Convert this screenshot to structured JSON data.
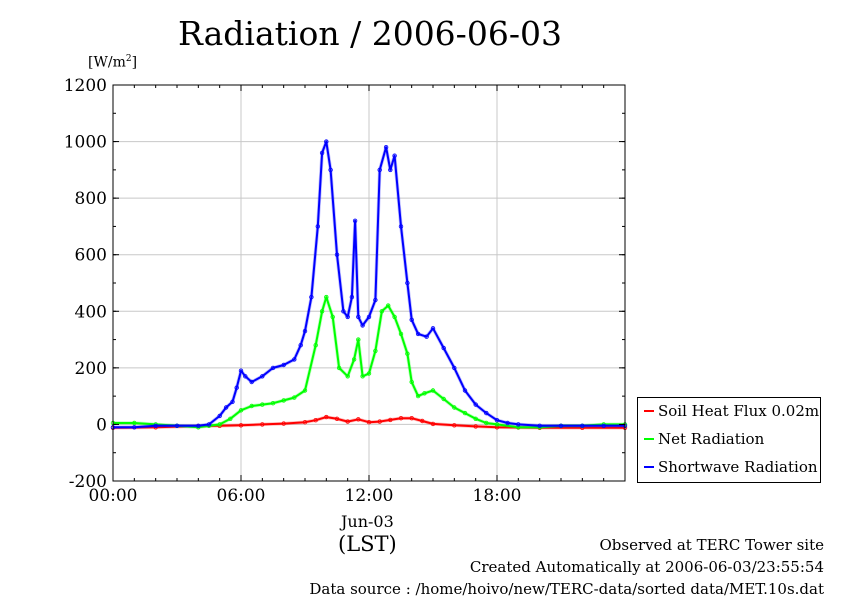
{
  "chart_data": {
    "type": "line",
    "title": "Radiation / 2006-06-03",
    "ylabel_base": "[W/m",
    "ylabel_sup": "2",
    "ylabel_end": "]",
    "xlabel_date": "Jun-03",
    "xlabel_tz": "(LST)",
    "ylim": [
      -200,
      1200
    ],
    "xlim_hours": [
      0,
      24
    ],
    "y_ticks": [
      -200,
      0,
      200,
      400,
      600,
      800,
      1000,
      1200
    ],
    "y_tick_labels": [
      "-200",
      "0",
      "200",
      "400",
      "600",
      "800",
      "1000",
      "1200"
    ],
    "x_ticks_hours": [
      0,
      6,
      12,
      18
    ],
    "x_tick_labels": [
      "00:00",
      "06:00",
      "12:00",
      "18:00"
    ],
    "grid": true,
    "legend_position": "outside-right",
    "series": [
      {
        "name": "Soil Heat Flux 0.02m",
        "color": "#ff0000",
        "x": [
          0,
          2,
          4,
          5,
          6,
          7,
          8,
          9,
          9.5,
          10,
          10.5,
          11,
          11.5,
          12,
          12.5,
          13,
          13.5,
          14,
          14.5,
          15,
          16,
          17,
          18,
          19,
          20,
          22,
          24
        ],
        "values": [
          -12,
          -10,
          -6,
          -5,
          -3,
          0,
          3,
          8,
          15,
          26,
          20,
          10,
          18,
          8,
          10,
          16,
          22,
          22,
          12,
          2,
          -3,
          -7,
          -10,
          -11,
          -12,
          -12,
          -12
        ]
      },
      {
        "name": "Net Radiation",
        "color": "#00ff00",
        "x": [
          0,
          1,
          2,
          3,
          4,
          4.5,
          5,
          5.5,
          6,
          6.5,
          7,
          7.5,
          8,
          8.5,
          9,
          9.5,
          9.8,
          10,
          10.3,
          10.6,
          11,
          11.3,
          11.5,
          11.7,
          12,
          12.3,
          12.6,
          12.9,
          13.2,
          13.5,
          13.8,
          14,
          14.3,
          14.6,
          15,
          15.5,
          16,
          16.5,
          17,
          17.5,
          18,
          19,
          20,
          21,
          22,
          23,
          24
        ],
        "values": [
          5,
          5,
          0,
          -5,
          -10,
          -5,
          0,
          20,
          50,
          65,
          70,
          75,
          85,
          95,
          120,
          280,
          400,
          450,
          380,
          200,
          170,
          230,
          300,
          170,
          180,
          260,
          400,
          420,
          380,
          320,
          250,
          150,
          100,
          110,
          120,
          90,
          60,
          40,
          20,
          5,
          0,
          -10,
          -10,
          -5,
          -5,
          0,
          0
        ]
      },
      {
        "name": "Shortwave Radiation",
        "color": "#0000ff",
        "x": [
          0,
          1,
          2,
          3,
          4,
          4.5,
          5,
          5.3,
          5.6,
          5.8,
          6,
          6.2,
          6.5,
          7,
          7.5,
          8,
          8.5,
          8.8,
          9,
          9.3,
          9.6,
          9.8,
          10,
          10.2,
          10.5,
          10.8,
          11,
          11.2,
          11.35,
          11.5,
          11.7,
          12,
          12.3,
          12.5,
          12.8,
          13,
          13.2,
          13.5,
          13.8,
          14,
          14.3,
          14.7,
          15,
          15.5,
          16,
          16.5,
          17,
          17.5,
          18,
          18.5,
          19,
          20,
          21,
          22,
          23,
          24
        ],
        "values": [
          -10,
          -10,
          -5,
          -5,
          -5,
          0,
          30,
          60,
          80,
          130,
          190,
          170,
          150,
          170,
          200,
          210,
          230,
          280,
          330,
          450,
          700,
          960,
          1000,
          900,
          600,
          400,
          380,
          450,
          720,
          380,
          350,
          380,
          440,
          900,
          980,
          900,
          950,
          700,
          500,
          370,
          320,
          310,
          340,
          270,
          200,
          120,
          70,
          40,
          15,
          5,
          0,
          -5,
          -5,
          -5,
          -5,
          -5
        ]
      }
    ]
  },
  "footer": {
    "line1": "Observed at TERC Tower site",
    "line2": "Created Automatically at 2006-06-03/23:55:54",
    "line3": "Data source : /home/hoivo/new/TERC-data/sorted  data/MET.10s.dat"
  }
}
